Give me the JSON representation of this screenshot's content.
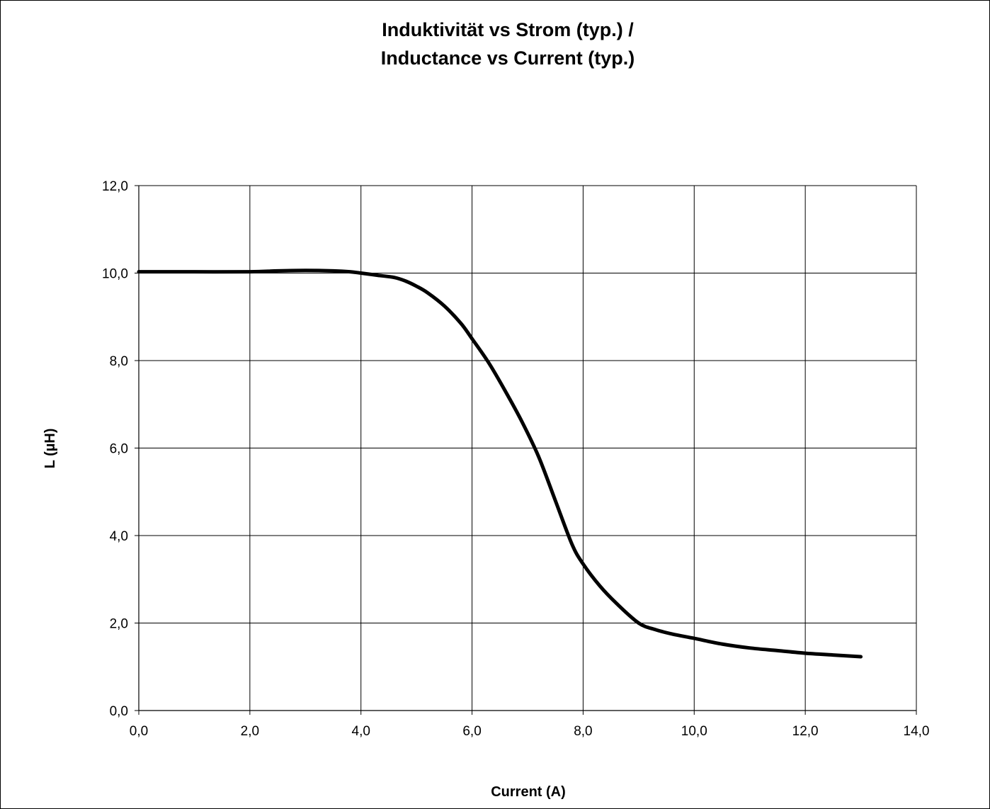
{
  "chart_data": {
    "type": "line",
    "title": "Induktivität vs Strom (typ.) /",
    "subtitle": "Inductance vs Current (typ.)",
    "xlabel": "Current (A)",
    "ylabel": "L (µH)",
    "xlim": [
      0,
      14
    ],
    "ylim": [
      0,
      12
    ],
    "xticks": [
      "0,0",
      "2,0",
      "4,0",
      "6,0",
      "8,0",
      "10,0",
      "12,0",
      "14,0"
    ],
    "yticks": [
      "0,0",
      "2,0",
      "4,0",
      "6,0",
      "8,0",
      "10,0",
      "12,0"
    ],
    "grid": true,
    "legend": "none",
    "line_color": "#000000",
    "series": [
      {
        "x": [
          0.0,
          1.0,
          2.0,
          2.5,
          3.0,
          3.5,
          3.8,
          4.0,
          4.3,
          4.6,
          4.8,
          5.0,
          5.2,
          5.5,
          5.8,
          6.0,
          6.3,
          6.6,
          6.9,
          7.2,
          7.5,
          7.8,
          8.0,
          8.3,
          8.6,
          9.0,
          9.3,
          9.6,
          10.0,
          10.5,
          11.0,
          11.5,
          12.0,
          12.5,
          13.0
        ],
        "y": [
          10.03,
          10.03,
          10.03,
          10.05,
          10.06,
          10.05,
          10.03,
          10.0,
          9.95,
          9.9,
          9.82,
          9.7,
          9.55,
          9.25,
          8.85,
          8.5,
          7.95,
          7.3,
          6.6,
          5.8,
          4.8,
          3.8,
          3.35,
          2.85,
          2.45,
          2.0,
          1.85,
          1.75,
          1.65,
          1.52,
          1.43,
          1.37,
          1.31,
          1.27,
          1.23
        ]
      }
    ]
  }
}
